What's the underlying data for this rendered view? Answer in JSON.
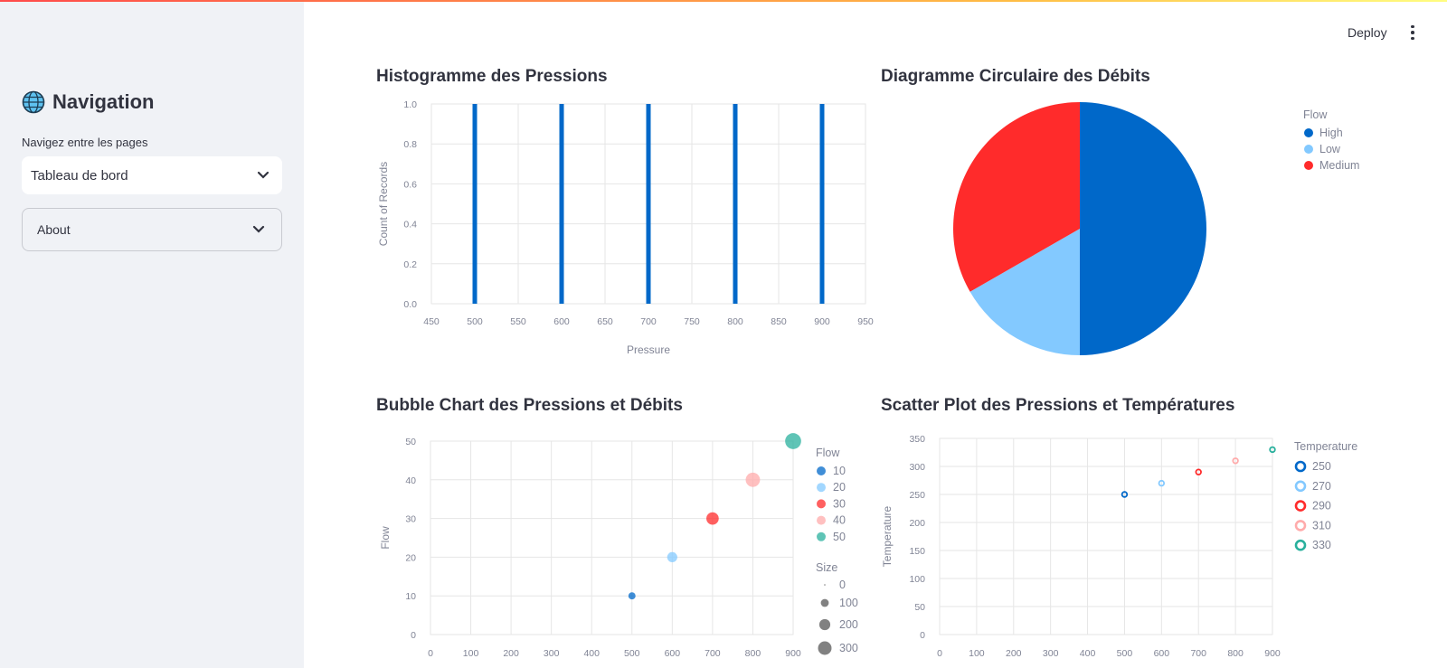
{
  "colors": {
    "accent": "#0068c9",
    "sidebar_bg": "#f0f2f6"
  },
  "sidebar": {
    "title": "Navigation",
    "title_icon": "globe-icon",
    "select_label": "Navigez entre les pages",
    "select_value": "Tableau de bord",
    "expander_label": "About"
  },
  "header": {
    "deploy_label": "Deploy",
    "menu_icon": "kebab-menu-icon"
  },
  "charts": {
    "histogram": {
      "title": "Histogramme des Pressions"
    },
    "pie": {
      "title": "Diagramme Circulaire des Débits"
    },
    "bubble": {
      "title": "Bubble Chart des Pressions et Débits"
    },
    "scatter": {
      "title": "Scatter Plot des Pressions et Températures"
    }
  },
  "chart_data": [
    {
      "id": "histogram",
      "type": "bar",
      "title": "Histogramme des Pressions",
      "xlabel": "Pressure",
      "ylabel": "Count of Records",
      "x": [
        500,
        600,
        700,
        800,
        900
      ],
      "values": [
        1,
        1,
        1,
        1,
        1
      ],
      "xlim": [
        450,
        950
      ],
      "ylim": [
        0,
        1
      ],
      "xticks": [
        450,
        500,
        550,
        600,
        650,
        700,
        750,
        800,
        850,
        900,
        950
      ],
      "yticks": [
        "0.0",
        "0.2",
        "0.4",
        "0.6",
        "0.8",
        "1.0"
      ],
      "color": "#0068c9"
    },
    {
      "id": "pie",
      "type": "pie",
      "title": "Diagramme Circulaire des Débits",
      "legend_title": "Flow",
      "labels": [
        "High",
        "Low",
        "Medium"
      ],
      "values": [
        50,
        16.7,
        33.3
      ],
      "colors": [
        "#0068c9",
        "#83c9ff",
        "#ff2b2b"
      ]
    },
    {
      "id": "bubble",
      "type": "scatter",
      "title": "Bubble Chart des Pressions et Débits",
      "xlabel": "",
      "ylabel": "Flow",
      "x": [
        500,
        600,
        700,
        800,
        900
      ],
      "y": [
        10,
        20,
        30,
        40,
        50
      ],
      "size": [
        10,
        20,
        30,
        40,
        50
      ],
      "xlim": [
        0,
        900
      ],
      "ylim": [
        0,
        50
      ],
      "xticks": [
        0,
        100,
        200,
        300,
        400,
        500,
        600,
        700,
        800,
        900
      ],
      "yticks": [
        0,
        10,
        20,
        30,
        40,
        50
      ],
      "legend_title": "Flow",
      "legend_labels": [
        "10",
        "20",
        "30",
        "40",
        "50"
      ],
      "colors": [
        "#0068c9",
        "#83c9ff",
        "#ff2b2b",
        "#ffabab",
        "#29b09d"
      ],
      "size_legend_title": "Size",
      "size_legend_labels": [
        "0",
        "100",
        "200",
        "300"
      ]
    },
    {
      "id": "scatter",
      "type": "scatter",
      "title": "Scatter Plot des Pressions et Températures",
      "xlabel": "",
      "ylabel": "Temperature",
      "x": [
        500,
        600,
        700,
        800,
        900
      ],
      "y": [
        250,
        270,
        290,
        310,
        330
      ],
      "xlim": [
        0,
        900
      ],
      "ylim": [
        0,
        350
      ],
      "xticks": [
        0,
        100,
        200,
        300,
        400,
        500,
        600,
        700,
        800,
        900
      ],
      "yticks": [
        0,
        50,
        100,
        150,
        200,
        250,
        300,
        350
      ],
      "legend_title": "Temperature",
      "legend_labels": [
        "250",
        "270",
        "290",
        "310",
        "330"
      ],
      "colors": [
        "#0068c9",
        "#83c9ff",
        "#ff2b2b",
        "#ffabab",
        "#29b09d"
      ]
    }
  ]
}
